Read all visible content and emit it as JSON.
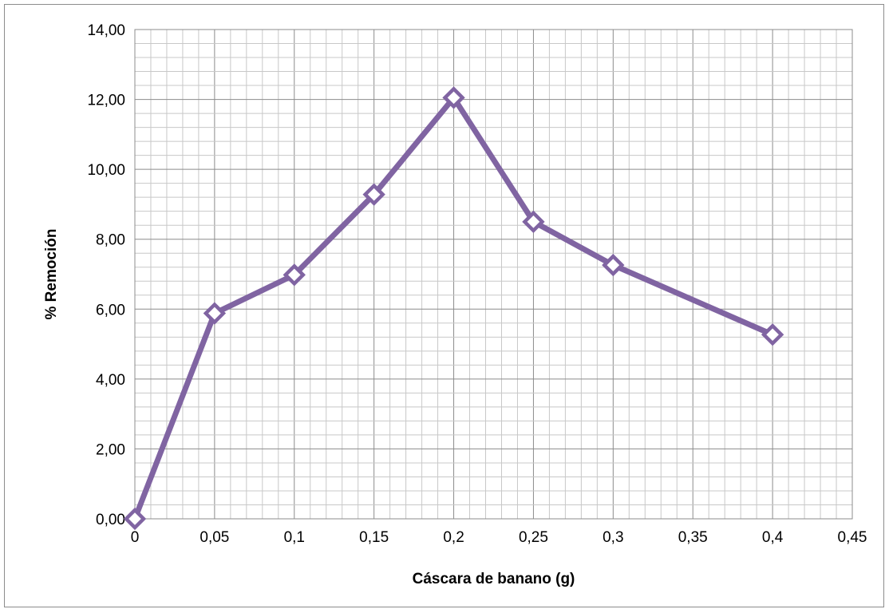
{
  "chart_data": {
    "type": "line",
    "title": "",
    "xlabel": "Cáscara de banano (g)",
    "ylabel": "% Remoción",
    "xlim": [
      0,
      0.45
    ],
    "ylim": [
      0,
      14
    ],
    "x_ticks": [
      "0",
      "0,05",
      "0,1",
      "0,15",
      "0,2",
      "0,25",
      "0,3",
      "0,35",
      "0,4",
      "0,45"
    ],
    "y_ticks": [
      "0,00",
      "2,00",
      "4,00",
      "6,00",
      "8,00",
      "10,00",
      "12,00",
      "14,00"
    ],
    "grid": true,
    "legend": "none",
    "series": [
      {
        "x": [
          0,
          0.05,
          0.1,
          0.15,
          0.2,
          0.25,
          0.3,
          0.4
        ],
        "values": [
          0.0,
          5.88,
          6.98,
          9.28,
          12.05,
          8.5,
          7.26,
          5.27
        ],
        "color": "#8064a2",
        "marker": "diamond"
      }
    ]
  }
}
